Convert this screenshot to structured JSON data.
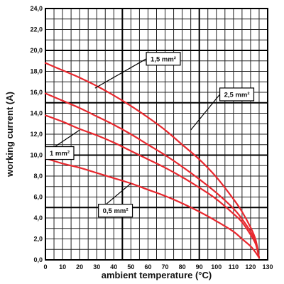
{
  "chart_data": {
    "type": "line",
    "title": "",
    "xlabel": "ambient temperature (°C)",
    "ylabel": "working current (A)",
    "xlim": [
      0,
      130
    ],
    "ylim": [
      0,
      24
    ],
    "x_ticks": [
      "0",
      "10",
      "20",
      "30",
      "40",
      "50",
      "60",
      "70",
      "80",
      "90",
      "100",
      "110",
      "120",
      "130"
    ],
    "y_ticks": [
      "0,0",
      "2,0",
      "4,0",
      "6,0",
      "8,0",
      "10,0",
      "12,0",
      "14,0",
      "16,0",
      "18,0",
      "20,0",
      "22,0",
      "24,0"
    ],
    "grid": true,
    "minor_grid_step": 5,
    "minor_grid_step_y": 1,
    "series_color": "#e8282e",
    "series": [
      {
        "name": "1,5 mm²",
        "points": [
          [
            0,
            18.8
          ],
          [
            10,
            18.1
          ],
          [
            20,
            17.4
          ],
          [
            30,
            16.6
          ],
          [
            40,
            15.7
          ],
          [
            50,
            14.7
          ],
          [
            60,
            13.6
          ],
          [
            70,
            12.4
          ],
          [
            80,
            11.0
          ],
          [
            90,
            9.6
          ],
          [
            100,
            7.9
          ],
          [
            110,
            5.8
          ],
          [
            115,
            4.6
          ],
          [
            120,
            3.1
          ],
          [
            123,
            1.9
          ],
          [
            125,
            0.2
          ]
        ]
      },
      {
        "name": "2,5 mm²",
        "points": [
          [
            0,
            15.9
          ],
          [
            10,
            15.2
          ],
          [
            20,
            14.5
          ],
          [
            30,
            13.7
          ],
          [
            40,
            12.9
          ],
          [
            50,
            12.0
          ],
          [
            60,
            11.0
          ],
          [
            70,
            10.0
          ],
          [
            80,
            8.9
          ],
          [
            90,
            7.7
          ],
          [
            100,
            6.4
          ],
          [
            110,
            4.9
          ],
          [
            115,
            3.9
          ],
          [
            120,
            2.7
          ],
          [
            123,
            1.7
          ],
          [
            125,
            0.2
          ]
        ]
      },
      {
        "name": "1 mm²",
        "points": [
          [
            0,
            13.8
          ],
          [
            10,
            13.2
          ],
          [
            20,
            12.5
          ],
          [
            30,
            11.9
          ],
          [
            40,
            11.2
          ],
          [
            50,
            10.4
          ],
          [
            60,
            9.6
          ],
          [
            70,
            8.8
          ],
          [
            80,
            7.9
          ],
          [
            90,
            6.9
          ],
          [
            100,
            5.8
          ],
          [
            110,
            4.4
          ],
          [
            115,
            3.6
          ],
          [
            120,
            2.4
          ],
          [
            123,
            1.5
          ],
          [
            125,
            0.2
          ]
        ]
      },
      {
        "name": "0,5 mm²",
        "points": [
          [
            0,
            9.7
          ],
          [
            10,
            9.2
          ],
          [
            20,
            8.8
          ],
          [
            30,
            8.3
          ],
          [
            40,
            7.8
          ],
          [
            50,
            7.3
          ],
          [
            60,
            6.7
          ],
          [
            70,
            6.1
          ],
          [
            80,
            5.4
          ],
          [
            90,
            4.6
          ],
          [
            100,
            3.7
          ],
          [
            110,
            2.7
          ],
          [
            115,
            2.0
          ],
          [
            120,
            1.3
          ],
          [
            123,
            0.7
          ],
          [
            125,
            0.2
          ]
        ]
      }
    ],
    "labels": [
      {
        "text": "1,5 mm²",
        "series": "1,5 mm²",
        "at": [
          59,
          19.2
        ],
        "point_to": [
          29,
          16.4
        ]
      },
      {
        "text": "2,5 mm²",
        "series": "2,5 mm²",
        "at": [
          102,
          15.8
        ],
        "point_to": [
          85,
          12.4
        ]
      },
      {
        "text": "1 mm²",
        "series": "1 mm²",
        "at": [
          0,
          10.2
        ],
        "point_to": [
          20,
          12.4
        ]
      },
      {
        "text": "0,5 mm²",
        "series": "0,5 mm²",
        "at": [
          31,
          4.7
        ],
        "point_to": [
          50,
          7.3
        ]
      }
    ]
  }
}
